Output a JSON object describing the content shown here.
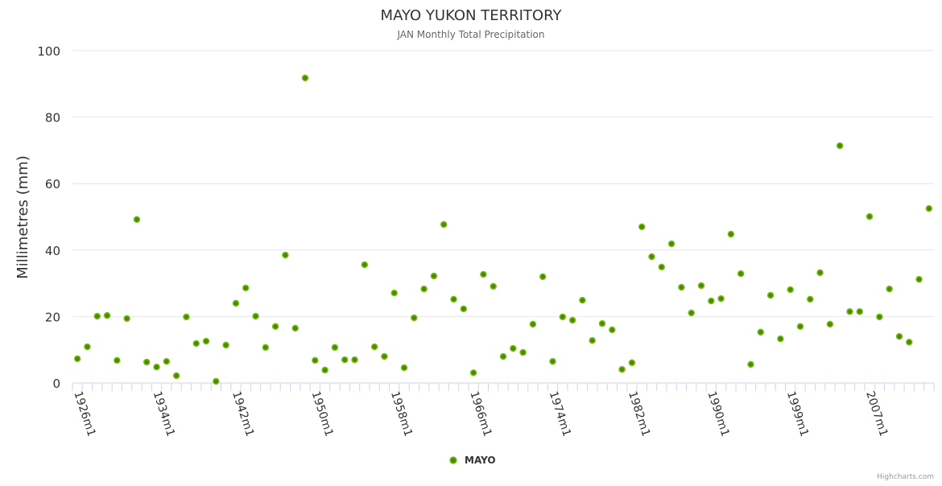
{
  "chart_data": {
    "type": "scatter",
    "title": "MAYO YUKON TERRITORY",
    "subtitle": "JAN Monthly Total Precipitation",
    "xlabel": "",
    "ylabel": "Millimetres (mm)",
    "ylim": [
      0,
      100
    ],
    "yticks": [
      0,
      20,
      40,
      60,
      80,
      100
    ],
    "grid": true,
    "legend_position": "bottom-center",
    "credit": "Highcharts.com",
    "marker_color": "#5a9e00",
    "categories": [
      "1926m1",
      "1927m1",
      "1928m1",
      "1929m1",
      "1930m1",
      "1931m1",
      "1932m1",
      "1933m1",
      "1934m1",
      "1935m1",
      "1936m1",
      "1937m1",
      "1938m1",
      "1939m1",
      "1940m1",
      "1941m1",
      "1942m1",
      "1943m1",
      "1944m1",
      "1945m1",
      "1946m1",
      "1947m1",
      "1948m1",
      "1949m1",
      "1950m1",
      "1951m1",
      "1952m1",
      "1953m1",
      "1954m1",
      "1955m1",
      "1956m1",
      "1957m1",
      "1958m1",
      "1959m1",
      "1960m1",
      "1961m1",
      "1962m1",
      "1963m1",
      "1964m1",
      "1965m1",
      "1966m1",
      "1967m1",
      "1968m1",
      "1969m1",
      "1970m1",
      "1971m1",
      "1972m1",
      "1973m1",
      "1974m1",
      "1975m1",
      "1976m1",
      "1977m1",
      "1978m1",
      "1979m1",
      "1980m1",
      "1981m1",
      "1982m1",
      "1983m1",
      "1984m1",
      "1985m1",
      "1986m1",
      "1987m1",
      "1988m1",
      "1989m1",
      "1990m1",
      "1991m1",
      "1992m1",
      "1994m1",
      "1995m1",
      "1996m1",
      "1997m1",
      "1998m1",
      "1999m1",
      "2000m1",
      "2001m1",
      "2002m1",
      "2003m1",
      "2004m1",
      "2005m1",
      "2006m1",
      "2007m1",
      "2008m1",
      "2009m1",
      "2010m1",
      "2011m1",
      "2012m1",
      "2013m1"
    ],
    "series": [
      {
        "name": "MAYO",
        "values": [
          7.3,
          10.9,
          20.1,
          20.3,
          6.8,
          19.4,
          49.2,
          6.3,
          4.8,
          6.5,
          2.2,
          19.9,
          11.9,
          12.6,
          0.5,
          11.4,
          24.0,
          28.6,
          20.1,
          10.7,
          17.0,
          38.5,
          16.5,
          91.8,
          6.8,
          3.9,
          10.7,
          7.0,
          7.0,
          35.6,
          10.9,
          8.0,
          27.1,
          4.6,
          19.6,
          28.3,
          32.2,
          47.7,
          25.2,
          22.3,
          3.1,
          32.7,
          29.1,
          8.0,
          10.4,
          9.2,
          17.7,
          32.0,
          6.5,
          19.9,
          18.9,
          24.9,
          12.8,
          17.9,
          16.0,
          4.1,
          6.1,
          47.0,
          38.0,
          34.9,
          41.9,
          28.8,
          21.1,
          29.3,
          24.7,
          25.4,
          44.8,
          32.9,
          5.6,
          15.3,
          26.4,
          13.3,
          28.1,
          17.0,
          25.2,
          33.2,
          17.7,
          71.4,
          21.5,
          21.5,
          50.1,
          19.9,
          28.3,
          14.0,
          12.3,
          31.2,
          52.5
        ]
      }
    ]
  }
}
